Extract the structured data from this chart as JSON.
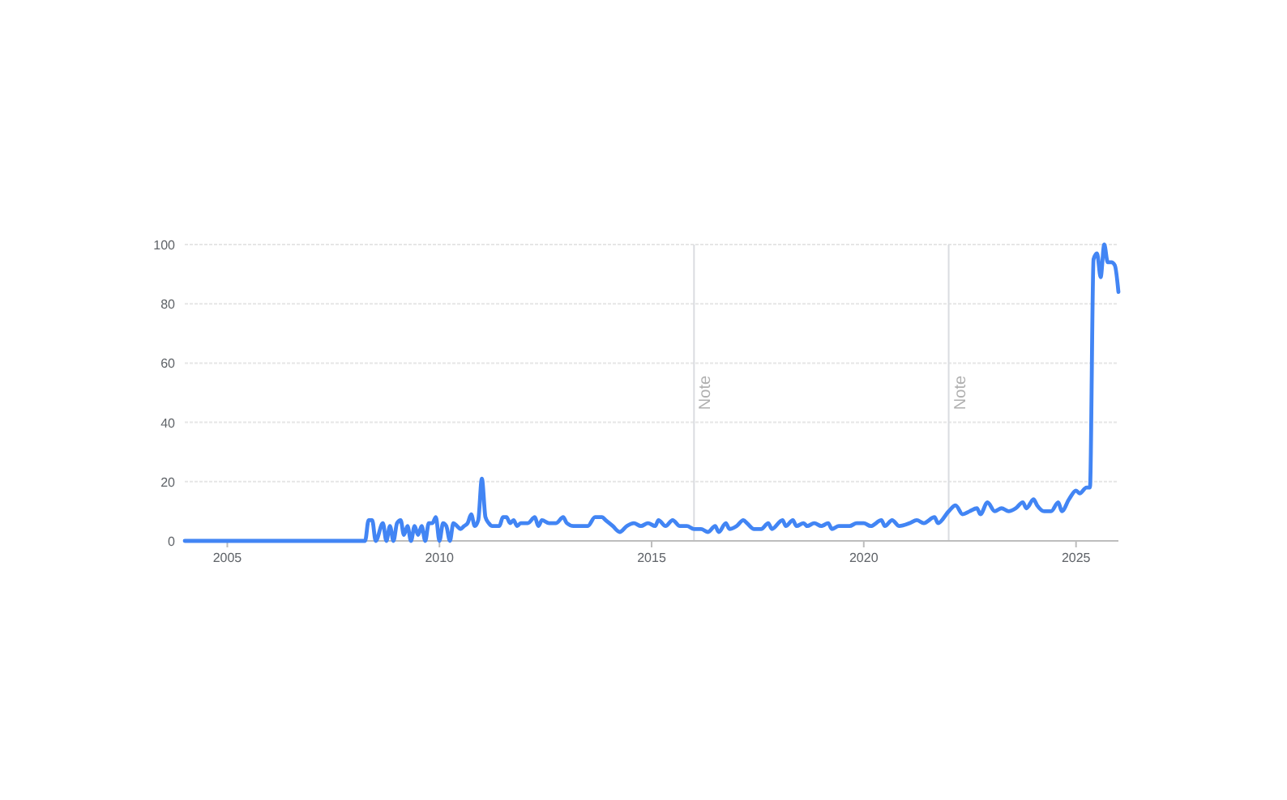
{
  "chart_data": {
    "type": "line",
    "x": [
      "2004-01",
      "2008-04",
      "2008-05",
      "2008-06",
      "2008-07",
      "2008-09",
      "2008-10",
      "2008-11",
      "2008-12",
      "2009-01",
      "2009-02",
      "2009-03",
      "2009-04",
      "2009-05",
      "2009-06",
      "2009-07",
      "2009-08",
      "2009-09",
      "2009-10",
      "2009-11",
      "2009-12",
      "2010-01",
      "2010-02",
      "2010-03",
      "2010-04",
      "2010-05",
      "2010-06",
      "2010-07",
      "2010-08",
      "2010-09",
      "2010-10",
      "2010-11",
      "2010-12",
      "2011-01",
      "2011-02",
      "2011-03",
      "2011-04",
      "2011-06",
      "2011-07",
      "2011-08",
      "2011-09",
      "2011-10",
      "2011-11",
      "2011-12",
      "2012-02",
      "2012-04",
      "2012-05",
      "2012-06",
      "2012-08",
      "2012-10",
      "2012-12",
      "2013-01",
      "2013-03",
      "2013-07",
      "2013-09",
      "2013-11",
      "2013-12",
      "2014-02",
      "2014-04",
      "2014-06",
      "2014-08",
      "2014-10",
      "2014-12",
      "2015-02",
      "2015-03",
      "2015-05",
      "2015-07",
      "2015-09",
      "2015-11",
      "2016-01",
      "2016-03",
      "2016-05",
      "2016-07",
      "2016-08",
      "2016-10",
      "2016-11",
      "2017-01",
      "2017-03",
      "2017-04",
      "2017-06",
      "2017-08",
      "2017-10",
      "2017-11",
      "2018-02",
      "2018-03",
      "2018-05",
      "2018-06",
      "2018-08",
      "2018-09",
      "2018-11",
      "2019-01",
      "2019-03",
      "2019-04",
      "2019-06",
      "2019-09",
      "2019-11",
      "2020-01",
      "2020-03",
      "2020-06",
      "2020-07",
      "2020-09",
      "2020-11",
      "2021-02",
      "2021-04",
      "2021-06",
      "2021-09",
      "2021-10",
      "2022-01",
      "2022-03",
      "2022-05",
      "2022-07",
      "2022-09",
      "2022-10",
      "2022-12",
      "2023-02",
      "2023-04",
      "2023-06",
      "2023-08",
      "2023-10",
      "2023-11",
      "2024-01",
      "2024-02",
      "2024-04",
      "2024-06",
      "2024-08",
      "2024-09",
      "2024-11",
      "2025-01",
      "2025-02",
      "2025-04",
      "2025-05",
      "2025-06",
      "2025-07",
      "2025-08",
      "2025-09",
      "2025-10",
      "2025-11",
      "2025-12",
      "2026-01"
    ],
    "series": [
      {
        "color": "#4285f4",
        "values": [
          0,
          0,
          7,
          7,
          0,
          6,
          0,
          5,
          0,
          6,
          7,
          2,
          5,
          0,
          5,
          2,
          5,
          0,
          6,
          6,
          8,
          0,
          6,
          5,
          0,
          6,
          5,
          4,
          5,
          6,
          9,
          5,
          7,
          21,
          8,
          6,
          5,
          5,
          8,
          8,
          6,
          7,
          5,
          6,
          6,
          8,
          5,
          7,
          6,
          6,
          8,
          6,
          5,
          5,
          8,
          8,
          7,
          5,
          3,
          5,
          6,
          5,
          6,
          5,
          7,
          5,
          7,
          5,
          5,
          4,
          4,
          3,
          5,
          3,
          6,
          4,
          5,
          7,
          6,
          4,
          4,
          6,
          4,
          7,
          5,
          7,
          5,
          6,
          5,
          6,
          5,
          6,
          4,
          5,
          5,
          6,
          6,
          5,
          7,
          5,
          7,
          5,
          6,
          7,
          6,
          8,
          6,
          10,
          12,
          9,
          10,
          11,
          9,
          13,
          10,
          11,
          10,
          11,
          13,
          11,
          14,
          12,
          10,
          10,
          13,
          10,
          14,
          17,
          16,
          18,
          18,
          95,
          97,
          89,
          100,
          94,
          94,
          93,
          84
        ]
      }
    ],
    "xlim": [
      "2004-01",
      "2026-01"
    ],
    "xticks": [
      "2005",
      "2010",
      "2015",
      "2020",
      "2025"
    ],
    "ylim": [
      0,
      100
    ],
    "yticks": [
      0,
      20,
      40,
      60,
      80,
      100
    ],
    "grid": "y",
    "ref_lines": [
      {
        "axis": "x",
        "value": "2016-01",
        "label": "Note",
        "color": "#dadce0"
      },
      {
        "axis": "x",
        "value": "2022-01",
        "label": "Note",
        "color": "#dadce0"
      }
    ]
  }
}
